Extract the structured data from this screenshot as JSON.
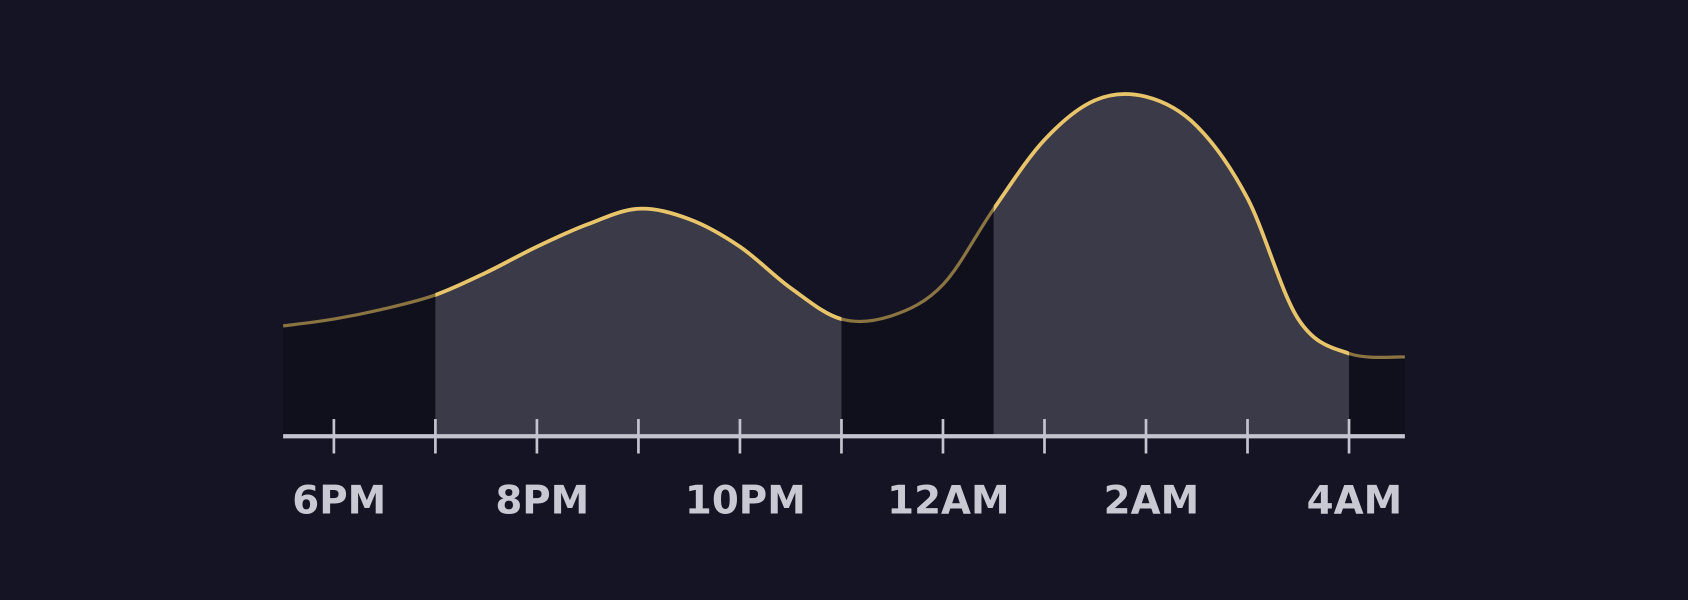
{
  "chart_data": {
    "type": "line",
    "x": [
      -0.5,
      0,
      0.5,
      1,
      1.5,
      2,
      2.5,
      3,
      3.5,
      4,
      4.5,
      5,
      5.5,
      6,
      6.5,
      7,
      7.5,
      8,
      8.5,
      9,
      9.5,
      10,
      10.55
    ],
    "values": [
      32,
      34,
      37,
      41,
      47.5,
      55,
      61.5,
      66,
      63,
      55,
      43,
      34,
      35,
      44,
      66,
      86,
      97.5,
      98.5,
      90,
      69,
      34,
      24,
      23
    ],
    "color": "#e8c46a",
    "highlight_ranges": [
      [
        1,
        5
      ],
      [
        6.5,
        10
      ]
    ],
    "xlim": [
      -0.5,
      10.55
    ],
    "ylim": [
      0,
      100
    ],
    "xticks": [
      {
        "value": 0,
        "label": "6PM"
      },
      {
        "value": 2,
        "label": "8PM"
      },
      {
        "value": 4,
        "label": "10PM"
      },
      {
        "value": 6,
        "label": "12AM"
      },
      {
        "value": 8,
        "label": "2AM"
      },
      {
        "value": 10,
        "label": "4AM"
      }
    ],
    "xminor_ticks": [
      1,
      3,
      5,
      7,
      9
    ]
  }
}
